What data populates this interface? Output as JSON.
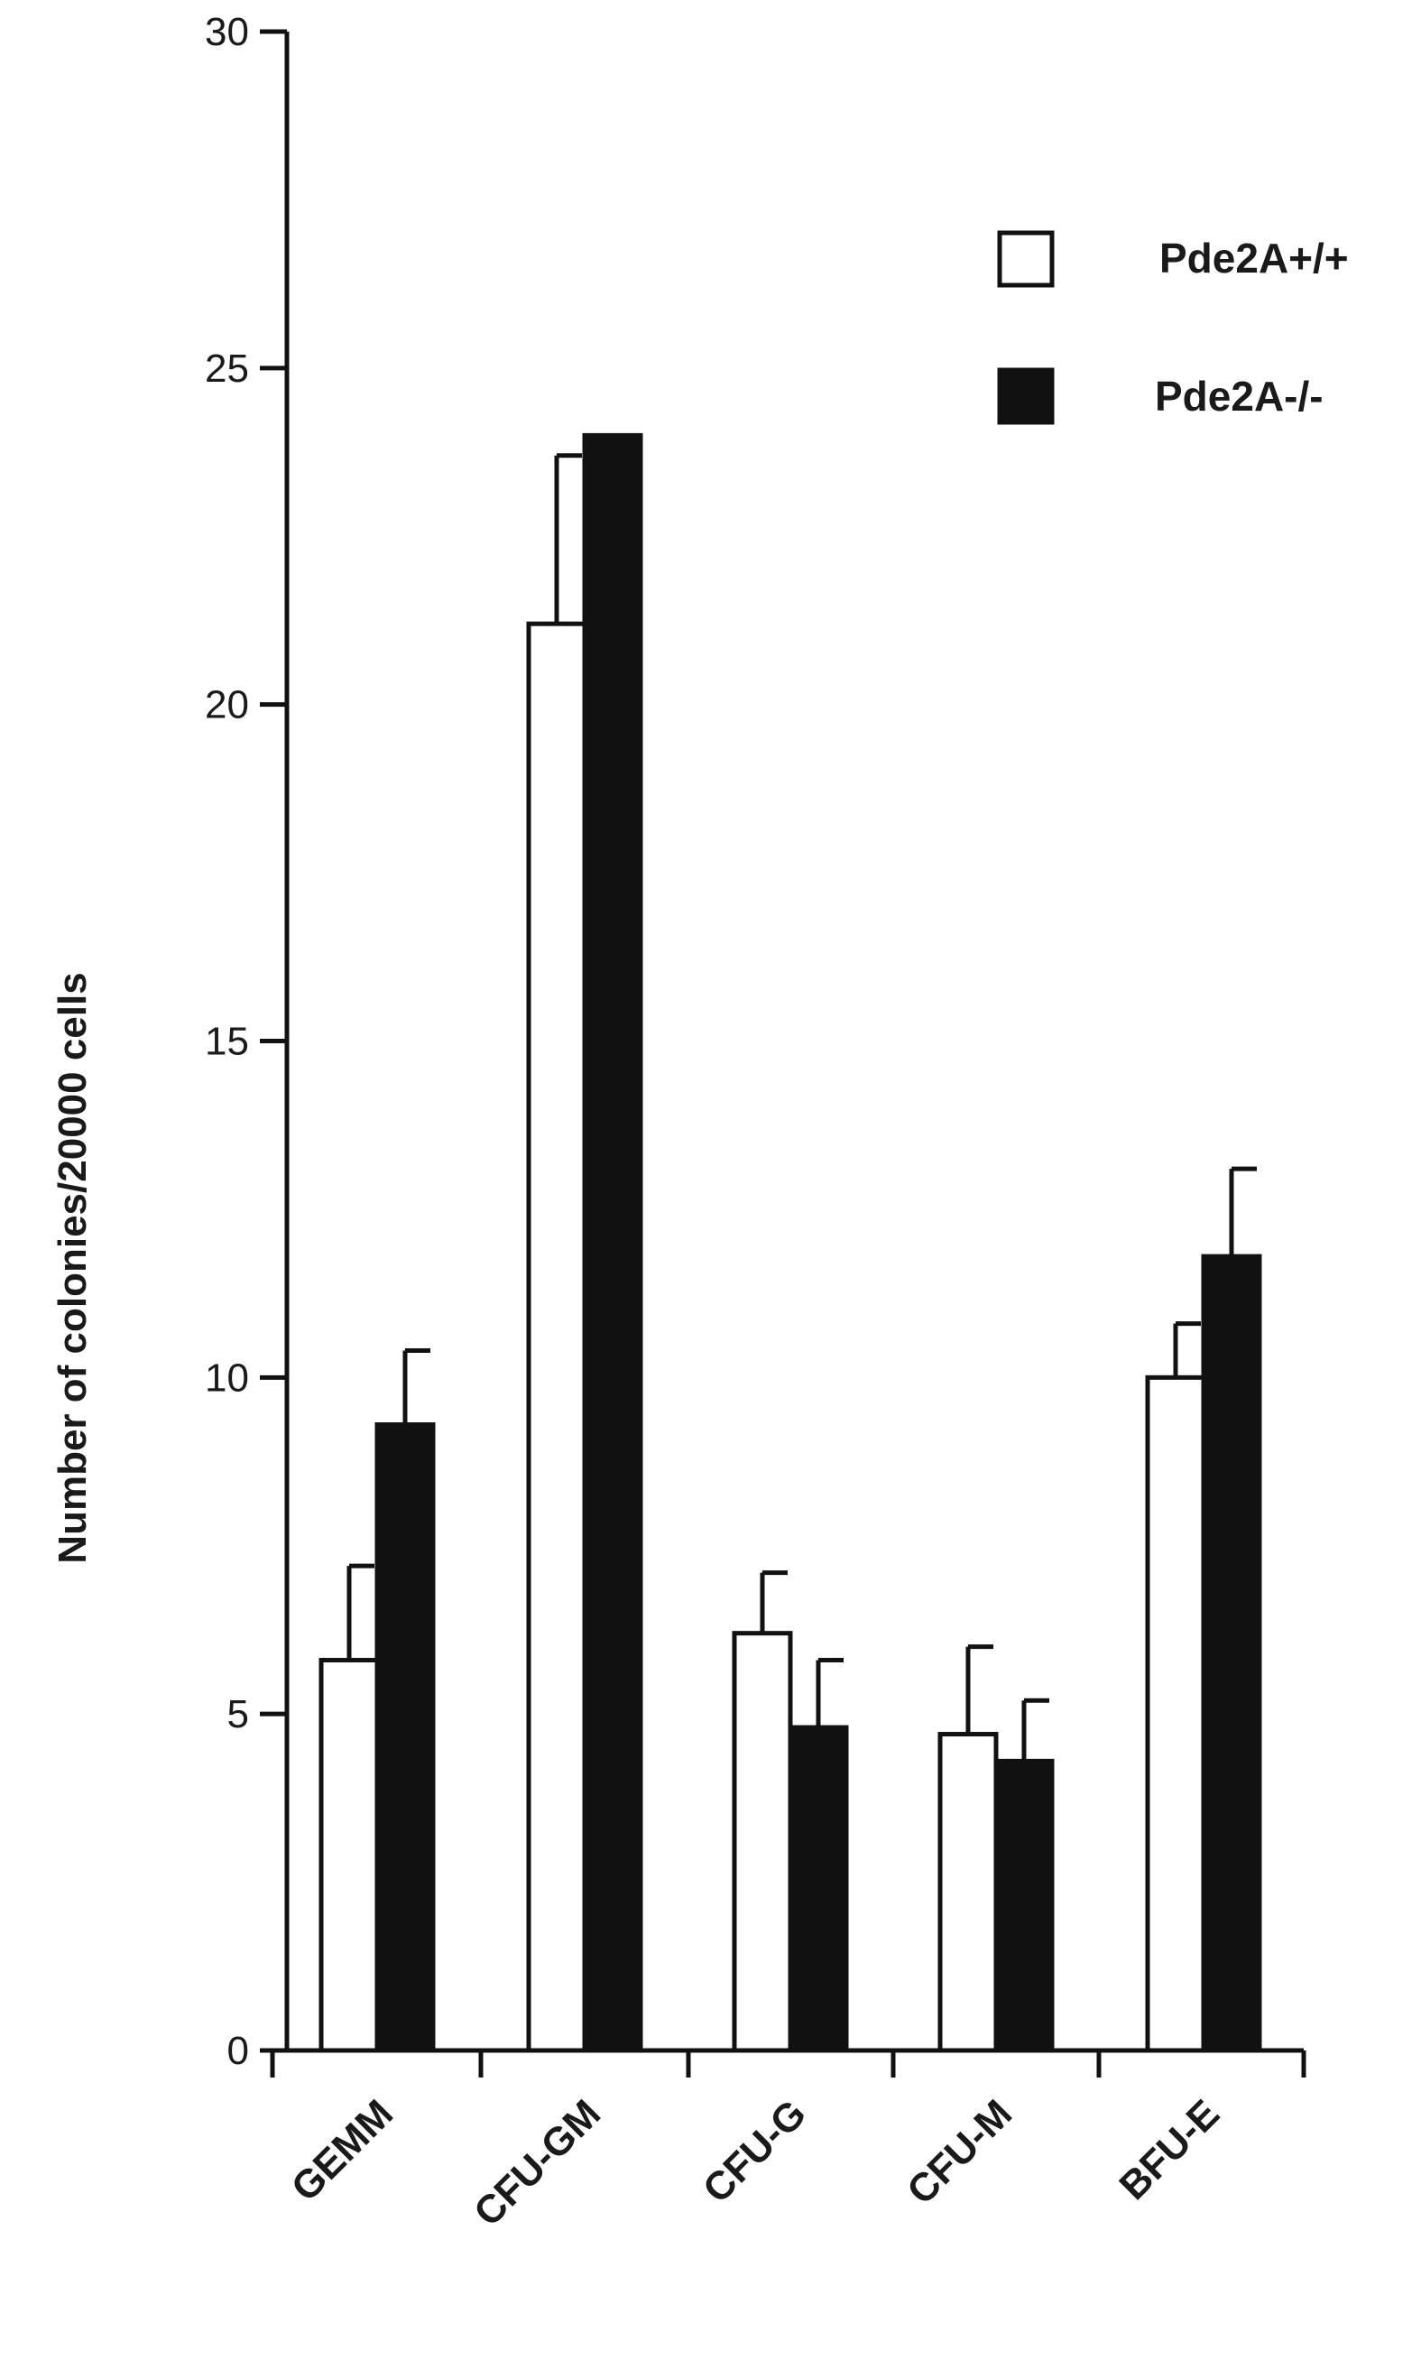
{
  "chart_data": {
    "type": "bar",
    "categories": [
      "GEMM",
      "CFU-GM",
      "CFU-G",
      "CFU-M",
      "BFU-E"
    ],
    "series": [
      {
        "name": "Pde2A+/+",
        "values": [
          5.8,
          21.2,
          6.2,
          4.7,
          10.0
        ],
        "errors": [
          1.4,
          2.5,
          0.9,
          1.3,
          0.8
        ],
        "fill": "#ffffff"
      },
      {
        "name": "Pde2A-/-",
        "values": [
          9.3,
          24.0,
          4.8,
          4.3,
          11.8
        ],
        "errors": [
          1.1,
          0.0,
          1.0,
          0.9,
          1.3
        ],
        "fill": "#111111"
      }
    ],
    "yticks": [
      "0",
      "5",
      "10",
      "15",
      "20",
      "25",
      "30"
    ],
    "ylabel": "Number of colonies/20000 cells",
    "xlabel": "",
    "ylim": [
      0,
      30
    ],
    "legend_position": "top-right",
    "grid": false
  }
}
